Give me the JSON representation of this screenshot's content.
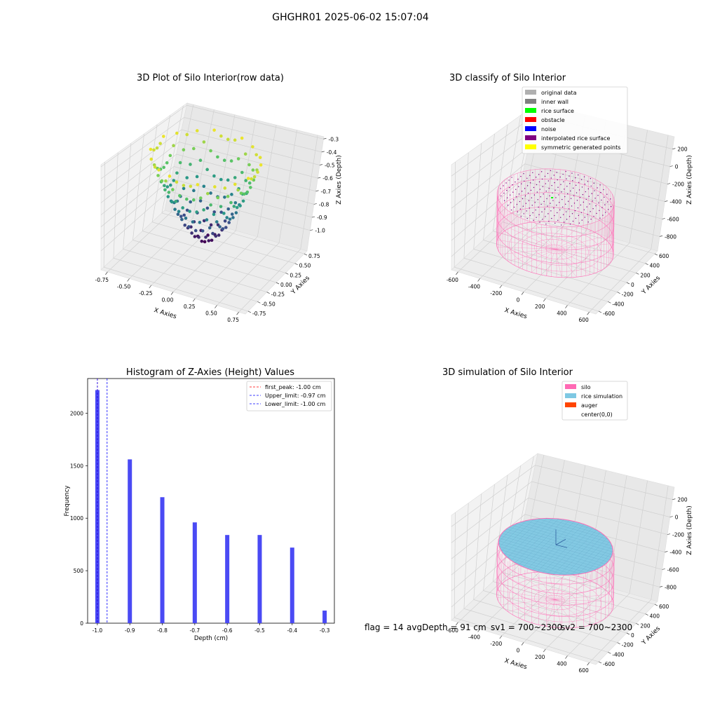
{
  "figure": {
    "suptitle": "GHGHR01 2025-06-02 15:07:04",
    "footer": {
      "flag": "flag = 14",
      "avg": "avgDepth = 91 cm",
      "sv1": "sv1 = 700~2300",
      "sv2": "sv2 = 700~2300"
    }
  },
  "colors": {
    "viridis": [
      "#440154",
      "#3b528b",
      "#21918c",
      "#5ec962",
      "#fde725"
    ],
    "silo": "#ff69b4",
    "rice": "#7ec8e3",
    "hist_bar": "#4a4af4"
  },
  "chart_data": [
    {
      "type": "scatter3d",
      "title": "3D Plot of Silo Interior(row data)",
      "xlabel": "X Axies",
      "ylabel": "Y Axies",
      "zlabel": "Z Axies (Depth)",
      "x_ticks": [
        "-0.75",
        "-0.50",
        "-0.25",
        "0.00",
        "0.25",
        "0.50",
        "0.75"
      ],
      "y_ticks": [
        "-0.75",
        "-0.50",
        "-0.25",
        "0.00",
        "0.25",
        "0.50",
        "0.75"
      ],
      "z_ticks": [
        "-0.3",
        "-0.4",
        "-0.5",
        "-0.6",
        "-0.7",
        "-0.8",
        "-0.9",
        "-1.0"
      ],
      "xlim": [
        -1,
        1
      ],
      "ylim": [
        -1,
        1
      ],
      "zlim": [
        -1.0,
        -0.3
      ],
      "shape": "bowl of points, depth -1.0 at center rising to -0.3 at rim",
      "colormap": "viridis"
    },
    {
      "type": "scatter3d",
      "title": "3D classify of Silo Interior",
      "xlabel": "X Axies",
      "ylabel": "Y Axies",
      "zlabel": "Z Axies (Depth)",
      "x_ticks": [
        "-600",
        "-400",
        "-200",
        "0",
        "200",
        "400",
        "600"
      ],
      "y_ticks": [
        "-600",
        "-400",
        "-200",
        "0",
        "200",
        "400",
        "600"
      ],
      "z_ticks": [
        "200",
        "0",
        "-200",
        "-400",
        "-600",
        "-800"
      ],
      "xlim": [
        -600,
        600
      ],
      "ylim": [
        -600,
        600
      ],
      "zlim": [
        -900,
        250
      ],
      "legend": [
        {
          "label": "original data",
          "color": "#b0b0b0"
        },
        {
          "label": "inner wall",
          "color": "#808080"
        },
        {
          "label": "rice surface",
          "color": "#00ff00"
        },
        {
          "label": "obstacle",
          "color": "#ff0000"
        },
        {
          "label": "noise",
          "color": "#0000ff"
        },
        {
          "label": "interpolated rice surface",
          "color": "#800080"
        },
        {
          "label": "symmetric generated points",
          "color": "#ffff00"
        }
      ],
      "legend_loc": "upper right"
    },
    {
      "type": "bar",
      "title": "Histogram of Z-Axies (Height) Values",
      "xlabel": "Depth (cm)",
      "ylabel": "Frequency",
      "categories": [
        -1.0,
        -0.9,
        -0.8,
        -0.7,
        -0.6,
        -0.5,
        -0.4,
        -0.3
      ],
      "values": [
        2220,
        1560,
        1200,
        960,
        840,
        840,
        720,
        120
      ],
      "x_ticks": [
        "-1.0",
        "-0.9",
        "-0.8",
        "-0.7",
        "-0.6",
        "-0.5",
        "-0.4",
        "-0.3"
      ],
      "y_ticks": [
        "0",
        "500",
        "1000",
        "1500",
        "2000"
      ],
      "xlim": [
        -1.03,
        -0.27
      ],
      "ylim": [
        0,
        2330
      ],
      "vlines": [
        {
          "label": "first_peak: -1.00 cm",
          "x": -1.0,
          "color": "#ff0000"
        },
        {
          "label": "Upper_limit: -0.97 cm",
          "x": -0.97,
          "color": "#0000ff"
        },
        {
          "label": "Lower_limit: -1.00 cm",
          "x": -1.0,
          "color": "#0000ff"
        }
      ],
      "legend_loc": "upper right"
    },
    {
      "type": "surface3d",
      "title": "3D simulation of Silo Interior",
      "xlabel": "X Axies",
      "ylabel": "Y Axies",
      "zlabel": "Z Axies (Depth)",
      "x_ticks": [
        "-600",
        "-400",
        "-200",
        "0",
        "200",
        "400",
        "600"
      ],
      "y_ticks": [
        "-600",
        "-400",
        "-200",
        "0",
        "200",
        "400",
        "600"
      ],
      "z_ticks": [
        "200",
        "0",
        "-200",
        "-400",
        "-600",
        "-800"
      ],
      "xlim": [
        -600,
        600
      ],
      "ylim": [
        -600,
        600
      ],
      "zlim": [
        -900,
        250
      ],
      "legend": [
        {
          "label": "silo",
          "color": "#ff69b4"
        },
        {
          "label": "rice simulation",
          "color": "#7ec8e3"
        },
        {
          "label": "auger",
          "color": "#ff4500"
        },
        {
          "label": "center(0,0)",
          "color": ""
        }
      ],
      "legend_loc": "upper right"
    }
  ]
}
